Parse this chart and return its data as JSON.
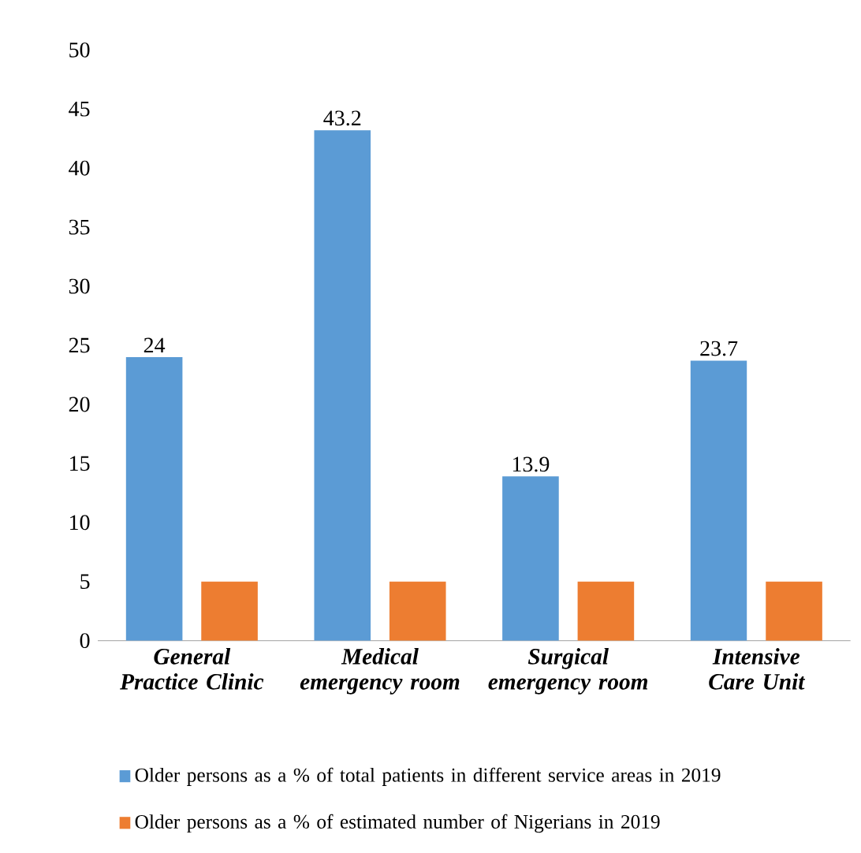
{
  "chart_data": {
    "type": "bar",
    "categories": [
      "General Practice Clinic",
      "Medical emergency room",
      "Surgical emergency room",
      "Intensive Care Unit"
    ],
    "series": [
      {
        "name": "Older persons as a % of total patients in different service areas in 2019",
        "color": "#5b9bd5",
        "values": [
          24,
          43.2,
          13.9,
          23.7
        ],
        "value_labels": [
          "24",
          "43.2",
          "13.9",
          "23.7"
        ]
      },
      {
        "name": "Older persons as a % of estimated number of Nigerians in 2019",
        "color": "#ed7d31",
        "values": [
          5,
          5,
          5,
          5
        ]
      }
    ],
    "ylim": [
      0,
      50
    ],
    "yticks": [
      0,
      5,
      10,
      15,
      20,
      25,
      30,
      35,
      40,
      45,
      50
    ],
    "legend": "bottom"
  }
}
